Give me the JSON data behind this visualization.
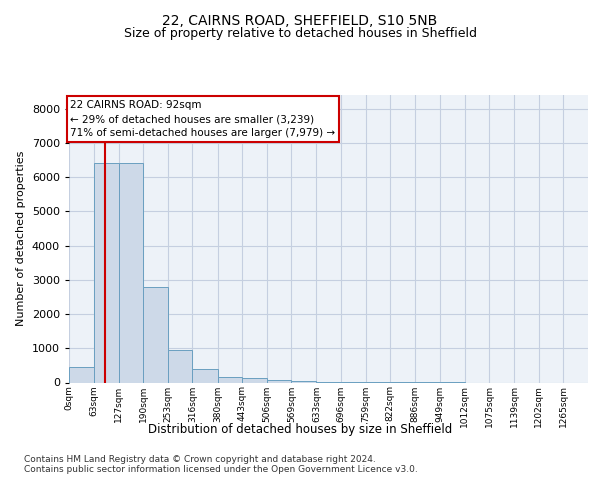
{
  "title_line1": "22, CAIRNS ROAD, SHEFFIELD, S10 5NB",
  "title_line2": "Size of property relative to detached houses in Sheffield",
  "xlabel": "Distribution of detached houses by size in Sheffield",
  "ylabel": "Number of detached properties",
  "footnote": "Contains HM Land Registry data © Crown copyright and database right 2024.\nContains public sector information licensed under the Open Government Licence v3.0.",
  "bar_color": "#cdd9e8",
  "bar_edge_color": "#6a9fc0",
  "grid_color": "#c5cfe0",
  "property_size": 92,
  "property_line_color": "#cc0000",
  "annotation_text": "22 CAIRNS ROAD: 92sqm\n← 29% of detached houses are smaller (3,239)\n71% of semi-detached houses are larger (7,979) →",
  "annotation_box_color": "#ffffff",
  "annotation_border_color": "#cc0000",
  "bin_edges": [
    0,
    63,
    127,
    190,
    253,
    316,
    380,
    443,
    506,
    569,
    633,
    696,
    759,
    822,
    886,
    949,
    1012,
    1075,
    1139,
    1202,
    1265
  ],
  "bin_labels": [
    "0sqm",
    "63sqm",
    "127sqm",
    "190sqm",
    "253sqm",
    "316sqm",
    "380sqm",
    "443sqm",
    "506sqm",
    "569sqm",
    "633sqm",
    "696sqm",
    "759sqm",
    "822sqm",
    "886sqm",
    "949sqm",
    "1012sqm",
    "1075sqm",
    "1139sqm",
    "1202sqm",
    "1265sqm"
  ],
  "bar_heights": [
    450,
    6400,
    6400,
    2800,
    950,
    400,
    150,
    120,
    70,
    50,
    10,
    5,
    3,
    2,
    1,
    1,
    0,
    0,
    0,
    0
  ],
  "ylim": [
    0,
    8400
  ],
  "yticks": [
    0,
    1000,
    2000,
    3000,
    4000,
    5000,
    6000,
    7000,
    8000
  ],
  "background_color": "#ffffff",
  "plot_background": "#edf2f8"
}
